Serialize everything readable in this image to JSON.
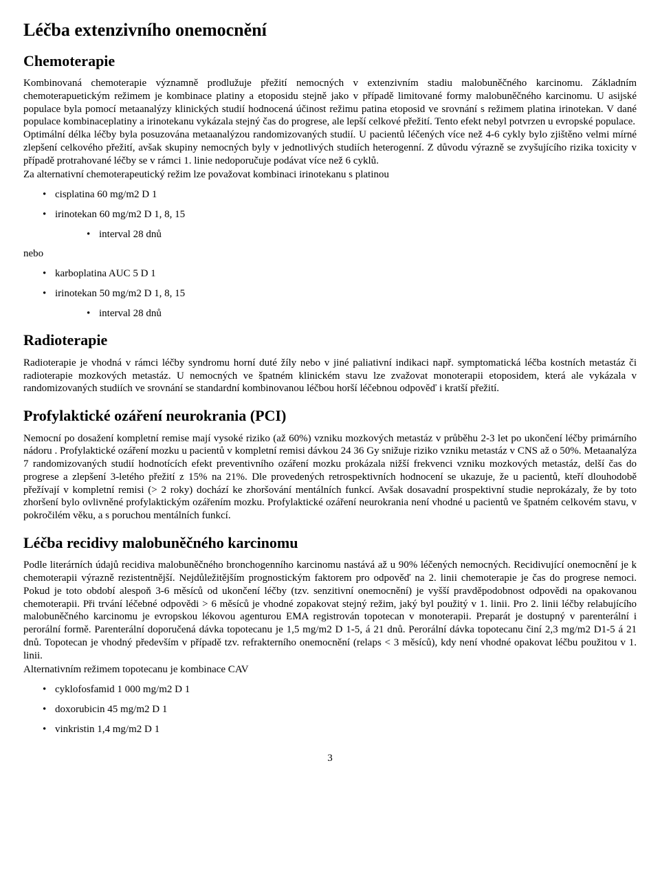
{
  "title": "Léčba extenzivního onemocnění",
  "sections": {
    "chemo": {
      "heading": "Chemoterapie",
      "para": "Kombinovaná chemoterapie významně prodlužuje přežití nemocných v extenzivním stadiu malobuněčného karcinomu. Základním chemoterapuetickým režimem je kombinace platiny a etoposidu stejně jako v případě limitované formy malobuněčného karcinomu. U asijské populace byla pomocí metaanalýzy klinických studií hodnocená účinost režimu patina etoposid ve srovnání s režimem platina irinotekan. V dané populace kombinaceplatiny a irinotekanu vykázala stejný čas do progrese, ale lepší celkové přežití. Tento efekt nebyl potvrzen u evropské populace.",
      "para2": "Optimální délka léčby byla posuzována metaanalýzou randomizovaných studií. U pacientů léčených více než 4-6 cykly bylo zjištěno velmi mírné zlepšení celkového přežití, avšak skupiny nemocných byly v jednotlivých studiích heterogenní. Z důvodu výrazně se zvyšujícího rizika toxicity v případě protrahované léčby se v rámci 1. linie nedoporučuje podávat více než 6 cyklů.",
      "para3": "Za alternativní chemoterapeutický režim lze považovat kombinaci irinotekanu s platinou",
      "list1": {
        "i0": "cisplatina 60 mg/m2 D 1",
        "i1": "irinotekan 60 mg/m2 D 1, 8, 15",
        "i1sub": "interval 28 dnů"
      },
      "nebo": "nebo",
      "list2": {
        "i0": "karboplatina AUC 5 D 1",
        "i1": "irinotekan 50 mg/m2 D 1, 8, 15",
        "i1sub": "interval 28 dnů"
      }
    },
    "radio": {
      "heading": "Radioterapie",
      "para": "Radioterapie je vhodná v rámci léčby syndromu horní duté žíly nebo v jiné paliativní indikaci např. symptomatická léčba kostních metastáz či radioterapie mozkových metastáz. U nemocných ve špatném klinickém stavu lze zvažovat monoterapii etoposidem, která ale vykázala v randomizovaných studiích ve srovnání se standardní kombinovanou léčbou horší léčebnou odpověď i kratší přežití."
    },
    "pci": {
      "heading": "Profylaktické ozáření neurokrania (PCI)",
      "para": "Nemocní po dosažení kompletní remise mají vysoké riziko (až 60%) vzniku mozkových metastáz v průběhu 2-3 let po ukončení léčby primárního nádoru . Profylaktické ozáření mozku u pacientů v kompletní remisi dávkou 24  36 Gy snižuje riziko vzniku metastáz v CNS až o 50%. Metaanalýza 7 randomizovaných studií hodnotících efekt preventivního ozáření mozku prokázala nižší frekvenci vzniku mozkových metastáz, delší čas do progrese a zlepšení 3-letého přežití z 15% na 21%. Dle provedených retrospektivních hodnocení se ukazuje, že u pacientů, kteří dlouhodobě přežívají v kompletní remisi (> 2 roky) dochází ke zhoršování mentálních funkcí. Avšak dosavadní prospektivní studie neprokázaly, že by toto zhoršení bylo ovlivněné profylaktickým ozářením mozku. Profylaktické ozáření neurokrania není vhodné u pacientů ve špatném celkovém stavu, v pokročilém věku, a s poruchou mentálních funkcí."
    },
    "recidiva": {
      "heading": "Léčba recidivy malobuněčného karcinomu",
      "para": "Podle literárních údajů recidiva malobuněčného bronchogenního karcinomu nastává až u 90% léčených nemocných. Recidivující onemocnění je k chemoterapii výrazně rezistentnější. Nejdůležitějším prognostickým faktorem pro odpověď na 2. linii chemoterapie je čas do progrese nemoci. Pokud je toto období alespoň 3-6 měsíců od ukončení léčby (tzv. senzitivní onemocnění) je vyšší pravděpodobnost odpovědi na opakovanou chemoterapii. Při trvání léčebné odpovědi > 6 měsíců je vhodné zopakovat stejný režim, jaký byl použitý v 1. linii. Pro 2. linii léčby relabujícího malobuněčného karcinomu je evropskou lékovou agenturou EMA registrován topotecan v monoterapii. Preparát je dostupný v parenterální i perorální formě. Parenterální doporučená dávka topotecanu je 1,5 mg/m2 D 1-5, á 21 dnů. Perorální dávka topotecanu činí 2,3 mg/m2 D1-5 á 21 dnů. Topotecan je vhodný především v případě tzv. refrakterního onemocnění (relaps < 3 měsíců), kdy není vhodné opakovat léčbu použitou v 1. linii.",
      "para2": "Alternativním režimem topotecanu je kombinace CAV",
      "list": {
        "i0": "cyklofosfamid 1 000 mg/m2 D 1",
        "i1": "doxorubicin 45 mg/m2 D 1",
        "i2": "vinkristin 1,4 mg/m2 D 1"
      }
    }
  },
  "pagenum": "3"
}
